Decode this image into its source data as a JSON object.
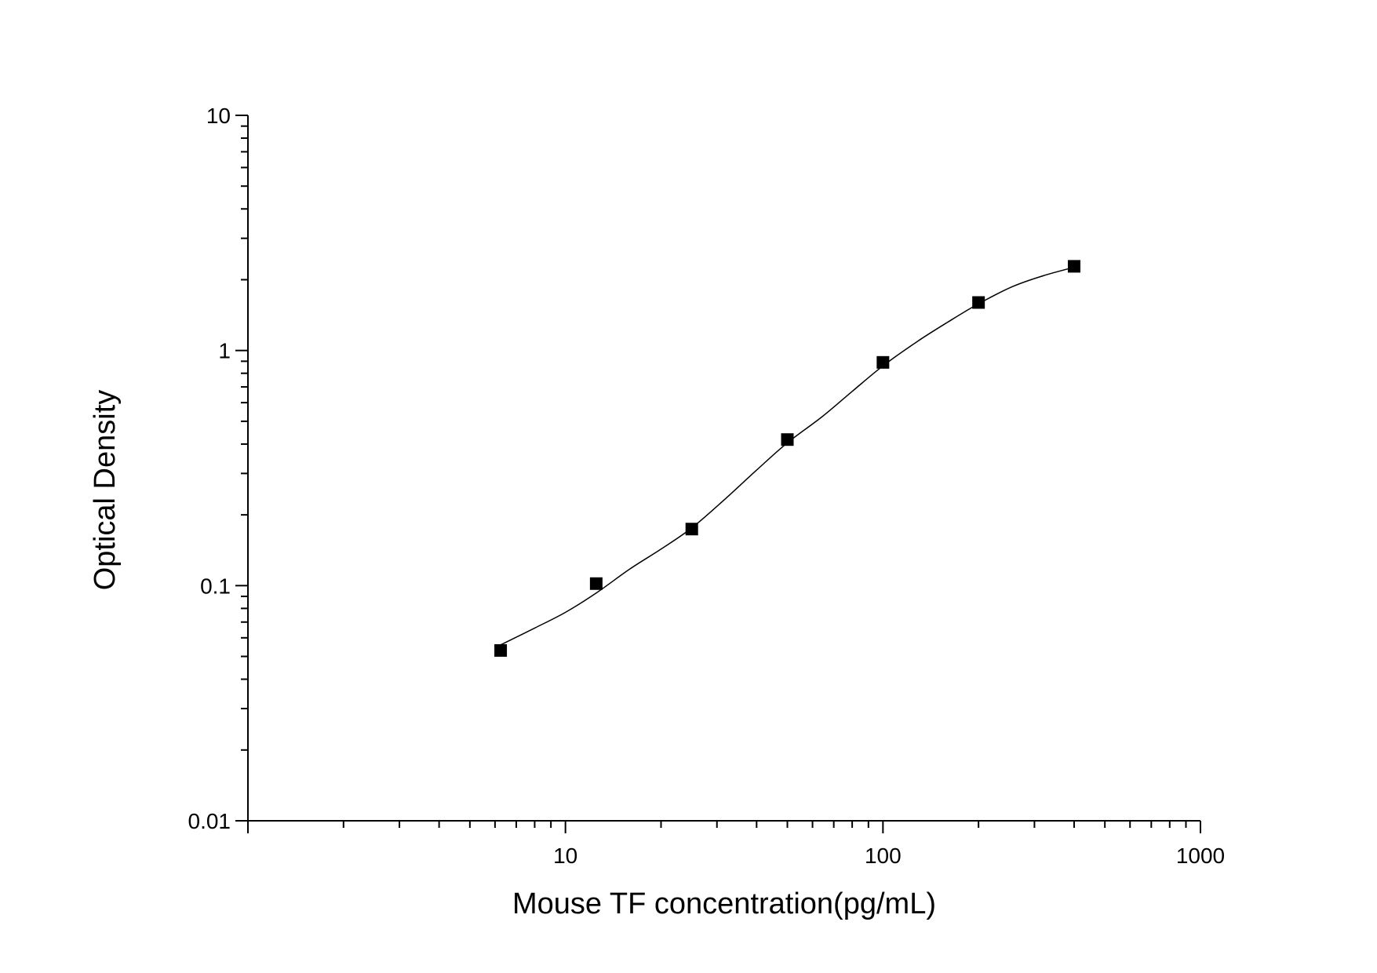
{
  "chart_data": {
    "type": "scatter",
    "title": "",
    "xlabel": "Mouse TF concentration(pg/mL)",
    "ylabel": "Optical Density",
    "x_scale": "log",
    "y_scale": "log",
    "xlim": [
      1,
      1000
    ],
    "ylim": [
      0.01,
      10
    ],
    "x_tick_labels": [
      "10",
      "100",
      "1000"
    ],
    "y_tick_labels": [
      "0.01",
      "0.1",
      "1",
      "10"
    ],
    "grid": false,
    "legend": "none",
    "series": [
      {
        "marker": "square",
        "color": "#000000",
        "x": [
          6.25,
          12.5,
          25,
          50,
          100,
          200,
          400
        ],
        "y": [
          0.053,
          0.102,
          0.174,
          0.418,
          0.89,
          1.6,
          2.28
        ]
      }
    ],
    "fit_curve": {
      "style": "line",
      "color": "#000000",
      "x": [
        6.25,
        8,
        10,
        12.5,
        16,
        20,
        25,
        32,
        40,
        50,
        64,
        80,
        100,
        128,
        160,
        200,
        256,
        320,
        400
      ],
      "y": [
        0.056,
        0.066,
        0.077,
        0.093,
        0.118,
        0.143,
        0.176,
        0.235,
        0.31,
        0.405,
        0.52,
        0.67,
        0.86,
        1.09,
        1.32,
        1.58,
        1.87,
        2.08,
        2.26
      ]
    }
  }
}
